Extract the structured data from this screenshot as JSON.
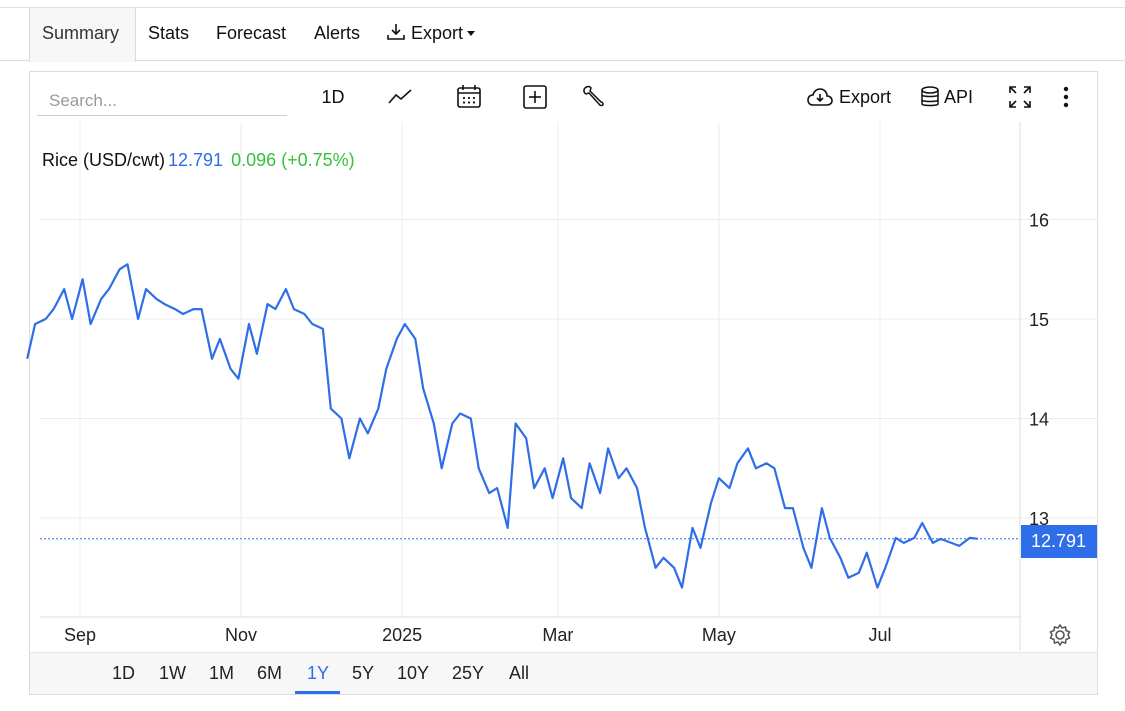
{
  "tabs": [
    {
      "label": "Summary"
    },
    {
      "label": "Stats"
    },
    {
      "label": "Forecast"
    },
    {
      "label": "Alerts"
    },
    {
      "label": "Export"
    }
  ],
  "search": {
    "placeholder": "Search..."
  },
  "toolbar": {
    "interval_label": "1D",
    "export_label": "Export",
    "api_label": "API",
    "icons": [
      "line-chart-icon",
      "calendar-icon",
      "plus-square-icon",
      "wrench-icon",
      "cloud-download-icon",
      "database-icon",
      "fullscreen-icon",
      "more-vertical-icon"
    ]
  },
  "legend": {
    "name": "Rice (USD/cwt)",
    "value": "12.791",
    "change": "0.096 (+0.75%)"
  },
  "colors": {
    "line": "#2e6ee8",
    "up": "#34c23a",
    "grid": "#ececec"
  },
  "price_tag": "12.791",
  "ranges": [
    "1D",
    "1W",
    "1M",
    "6M",
    "1Y",
    "5Y",
    "10Y",
    "25Y",
    "All"
  ],
  "active_range": "1Y",
  "chart_data": {
    "type": "line",
    "title": "",
    "series": [
      {
        "name": "Rice (USD/cwt)",
        "x": [
          "2024-08-12",
          "2024-08-15",
          "2024-08-19",
          "2024-08-22",
          "2024-08-26",
          "2024-08-29",
          "2024-09-02",
          "2024-09-05",
          "2024-09-09",
          "2024-09-12",
          "2024-09-16",
          "2024-09-19",
          "2024-09-23",
          "2024-09-26",
          "2024-09-30",
          "2024-10-03",
          "2024-10-07",
          "2024-10-10",
          "2024-10-14",
          "2024-10-17",
          "2024-10-21",
          "2024-10-24",
          "2024-10-28",
          "2024-10-31",
          "2024-11-04",
          "2024-11-07",
          "2024-11-11",
          "2024-11-14",
          "2024-11-18",
          "2024-11-21",
          "2024-11-25",
          "2024-11-28",
          "2024-12-02",
          "2024-12-05",
          "2024-12-09",
          "2024-12-12",
          "2024-12-16",
          "2024-12-19",
          "2024-12-23",
          "2024-12-26",
          "2024-12-30",
          "2025-01-02",
          "2025-01-06",
          "2025-01-09",
          "2025-01-13",
          "2025-01-16",
          "2025-01-20",
          "2025-01-23",
          "2025-01-27",
          "2025-01-30",
          "2025-02-03",
          "2025-02-06",
          "2025-02-10",
          "2025-02-13",
          "2025-02-17",
          "2025-02-20",
          "2025-02-24",
          "2025-02-27",
          "2025-03-03",
          "2025-03-06",
          "2025-03-10",
          "2025-03-13",
          "2025-03-17",
          "2025-03-20",
          "2025-03-24",
          "2025-03-27",
          "2025-03-31",
          "2025-04-03",
          "2025-04-07",
          "2025-04-10",
          "2025-04-14",
          "2025-04-17",
          "2025-04-21",
          "2025-04-24",
          "2025-04-28",
          "2025-05-01",
          "2025-05-05",
          "2025-05-08",
          "2025-05-12",
          "2025-05-15",
          "2025-05-19",
          "2025-05-22",
          "2025-05-26",
          "2025-05-29",
          "2025-06-02",
          "2025-06-05",
          "2025-06-09",
          "2025-06-12",
          "2025-06-16",
          "2025-06-19",
          "2025-06-23",
          "2025-06-26",
          "2025-06-30",
          "2025-07-03",
          "2025-07-07",
          "2025-07-10",
          "2025-07-14",
          "2025-07-17",
          "2025-07-21",
          "2025-07-24",
          "2025-07-28",
          "2025-07-31",
          "2025-08-04",
          "2025-08-07"
        ],
        "values": [
          14.6,
          14.95,
          15.0,
          15.1,
          15.3,
          15.0,
          15.4,
          14.95,
          15.2,
          15.3,
          15.5,
          15.55,
          15.0,
          15.3,
          15.2,
          15.15,
          15.1,
          15.05,
          15.1,
          15.1,
          14.6,
          14.8,
          14.5,
          14.4,
          14.95,
          14.65,
          15.15,
          15.1,
          15.3,
          15.1,
          15.05,
          14.95,
          14.9,
          14.1,
          14.0,
          13.6,
          14.0,
          13.85,
          14.1,
          14.5,
          14.8,
          14.95,
          14.8,
          14.3,
          13.95,
          13.5,
          13.95,
          14.05,
          14.0,
          13.5,
          13.25,
          13.3,
          12.9,
          13.95,
          13.8,
          13.3,
          13.5,
          13.2,
          13.6,
          13.2,
          13.1,
          13.55,
          13.25,
          13.7,
          13.4,
          13.5,
          13.3,
          12.9,
          12.5,
          12.6,
          12.5,
          12.3,
          12.9,
          12.7,
          13.15,
          13.4,
          13.3,
          13.55,
          13.7,
          13.5,
          13.55,
          13.5,
          13.1,
          13.1,
          12.7,
          12.5,
          13.1,
          12.8,
          12.6,
          12.4,
          12.45,
          12.65,
          12.3,
          12.5,
          12.8,
          12.75,
          12.8,
          12.95,
          12.75,
          12.79,
          12.75,
          12.72,
          12.8,
          12.791
        ]
      }
    ],
    "xticks": [
      "Sep",
      "Nov",
      "2025",
      "Mar",
      "May",
      "Jul"
    ],
    "yticks": [
      13,
      14,
      15,
      16
    ],
    "ylim": [
      12.05,
      16.6
    ],
    "xlabel": "",
    "ylabel": "",
    "last_value": 12.791,
    "grid": true,
    "legend_position": "top-left"
  }
}
